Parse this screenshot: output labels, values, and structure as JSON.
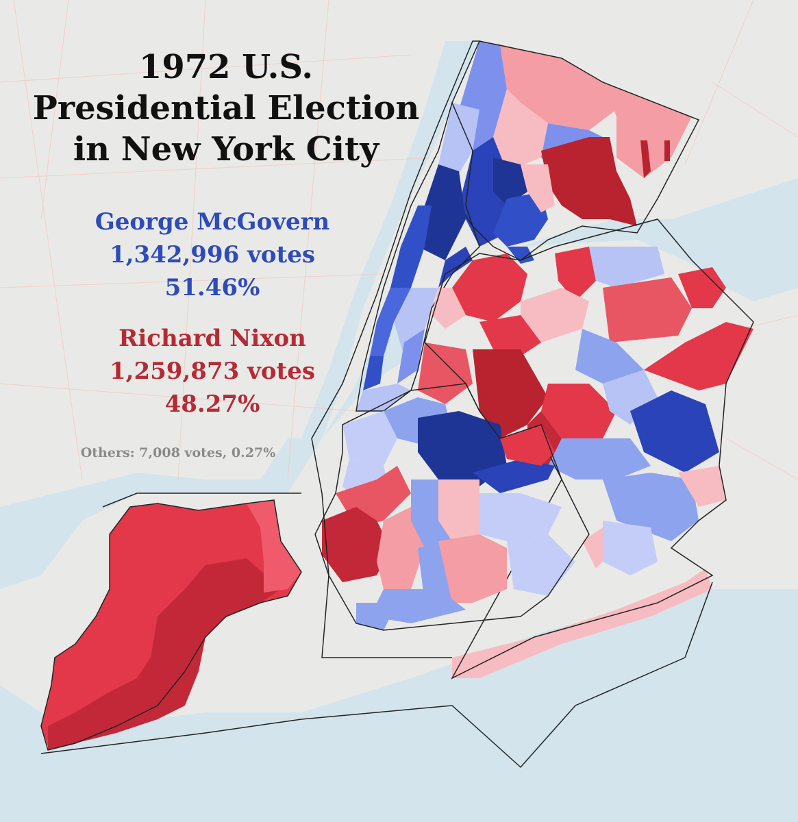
{
  "title": {
    "line1": "1972 U.S.",
    "line2": "Presidential Election",
    "line3": "in New York City"
  },
  "candidates": {
    "dem": {
      "name": "George McGovern",
      "votes": "1,342,996 votes",
      "pct": "51.46%",
      "color": "#2e4bb8"
    },
    "rep": {
      "name": "Richard Nixon",
      "votes": "1,259,873 votes",
      "pct": "48.27%",
      "color": "#b52a35"
    }
  },
  "others": "Others: 7,008 votes, 0.27%",
  "colors": {
    "water": "#d6e6ee",
    "land": "#ececea",
    "dem_dark": "#1f3596",
    "dem_mid": "#3150c8",
    "dem_light": "#8ea3ee",
    "dem_pale": "#c3cdf8",
    "rep_dark": "#b8232f",
    "rep_mid": "#e2384a",
    "rep_light": "#ef8891",
    "rep_pale": "#f7bcc1",
    "border": "#222222"
  }
}
